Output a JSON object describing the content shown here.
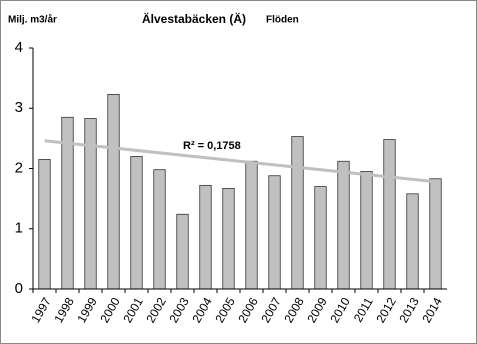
{
  "chart_data": {
    "type": "bar",
    "title": "Älvestabäcken (Ä)",
    "subtitle": "Flöden",
    "y_label": "Milj.  m3/år",
    "categories": [
      "1997",
      "1998",
      "1999",
      "2000",
      "2001",
      "2002",
      "2003",
      "2004",
      "2005",
      "2006",
      "2007",
      "2008",
      "2009",
      "2010",
      "2011",
      "2012",
      "2013",
      "2014"
    ],
    "values": [
      2.15,
      2.85,
      2.83,
      3.23,
      2.2,
      1.98,
      1.24,
      1.72,
      1.67,
      2.12,
      1.88,
      2.53,
      1.7,
      2.12,
      1.95,
      2.48,
      1.58,
      1.83
    ],
    "color": "#c0c0c0",
    "ylim": [
      0,
      4
    ],
    "yticks": [
      0,
      1,
      2,
      3,
      4
    ],
    "grid": false,
    "trendline": {
      "start": 2.46,
      "end": 1.78,
      "color": "#c0c0c0",
      "label": "R² = 0,1758"
    }
  }
}
